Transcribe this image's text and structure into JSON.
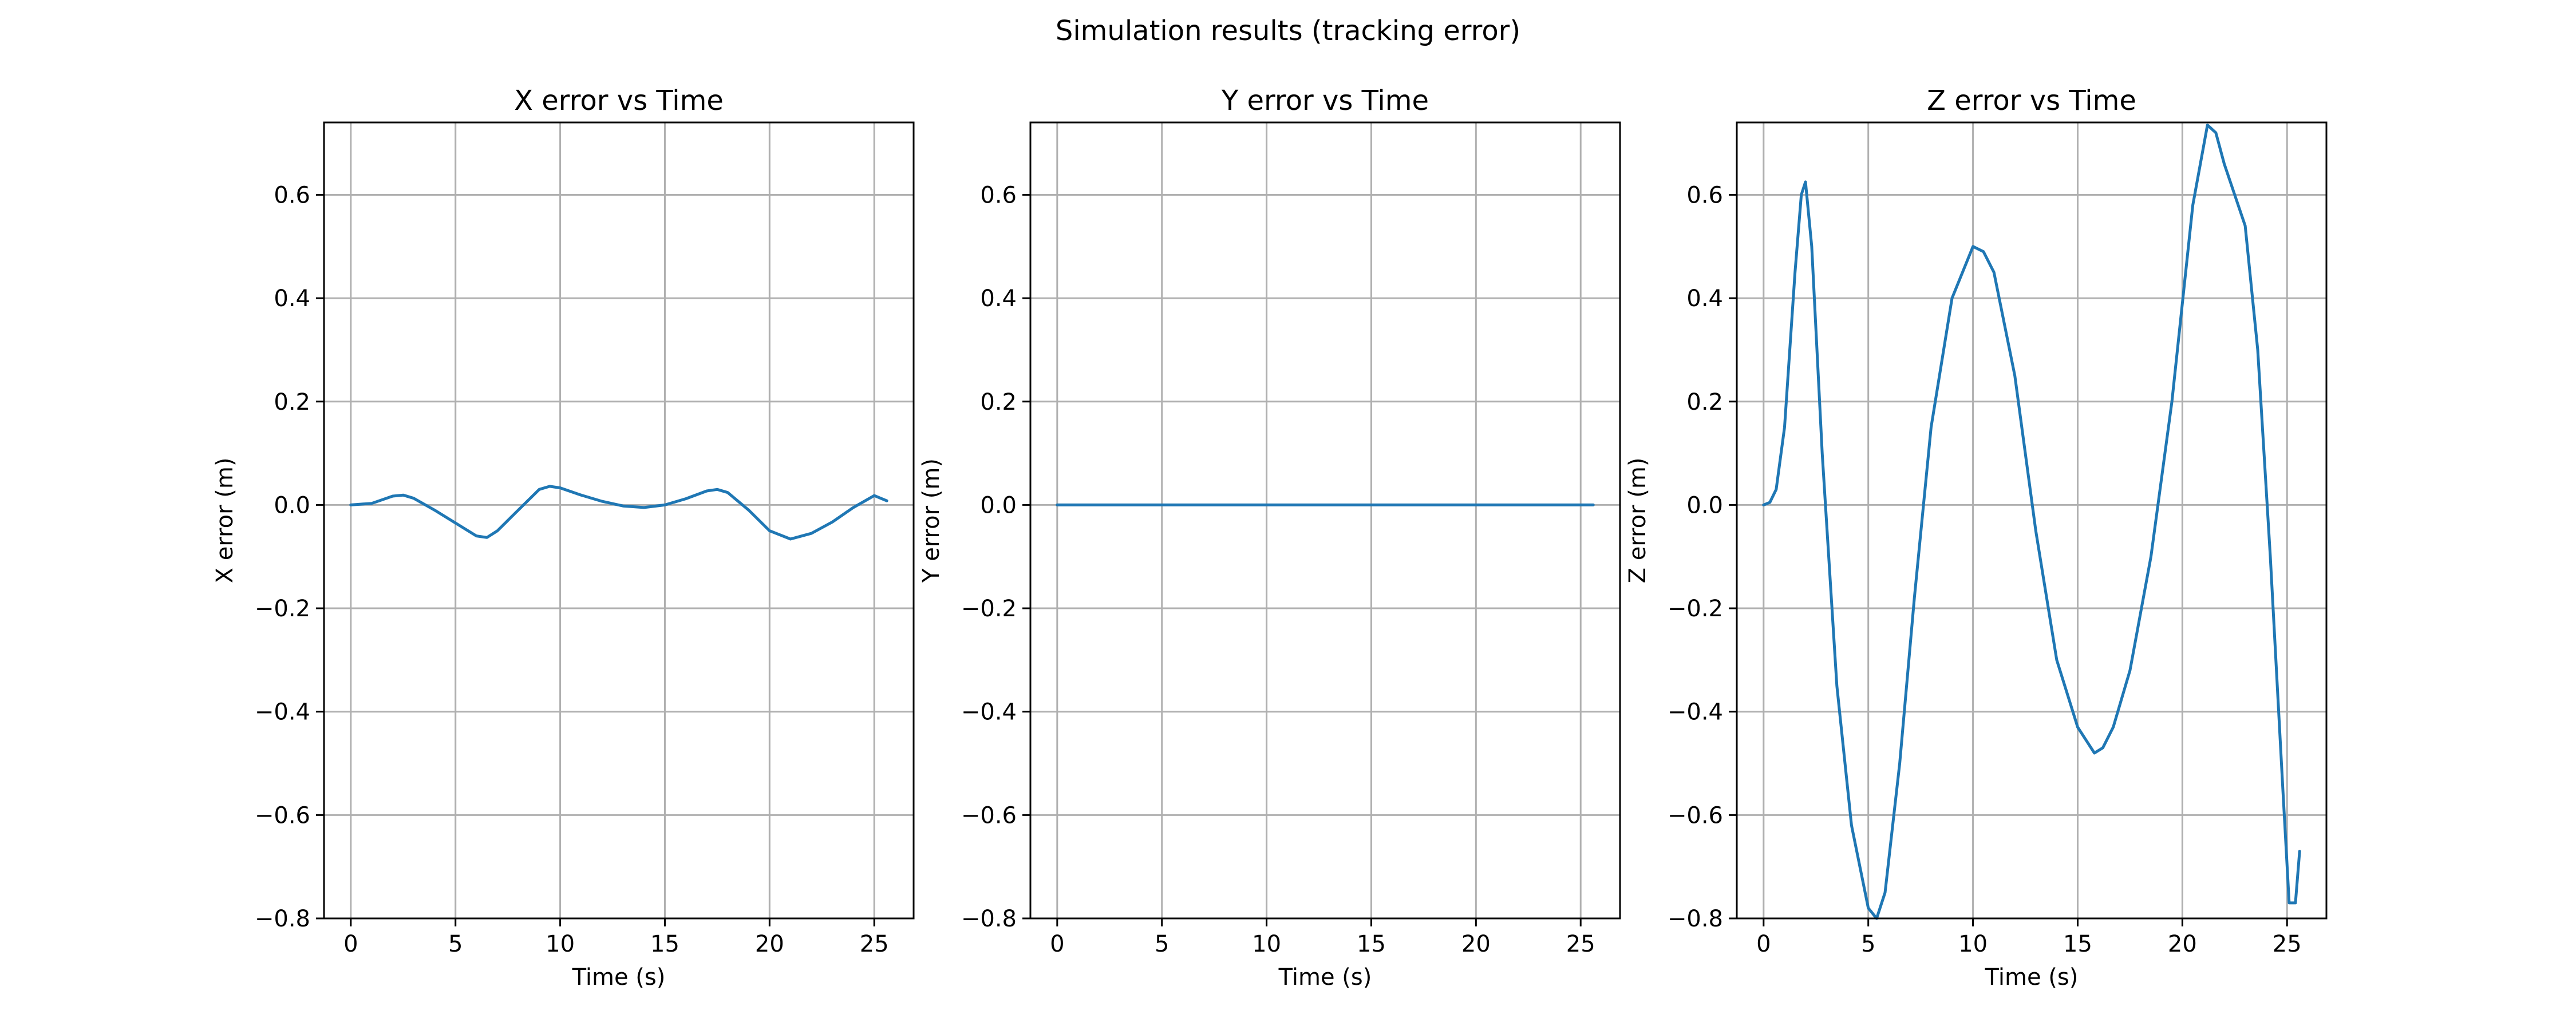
{
  "figure": {
    "suptitle": "Simulation results (tracking error)",
    "line_color": "#1f77b4"
  },
  "chart_data": [
    {
      "type": "line",
      "title": "X error vs Time",
      "xlabel": "Time (s)",
      "ylabel": "X error (m)",
      "xlim": [
        -1.28,
        26.88
      ],
      "ylim": [
        -0.8,
        0.74
      ],
      "xticks": [
        0,
        5,
        10,
        15,
        20,
        25
      ],
      "yticks": [
        -0.8,
        -0.6,
        -0.4,
        -0.2,
        0.0,
        0.2,
        0.4,
        0.6
      ],
      "ytick_labels": [
        "−0.8",
        "−0.6",
        "−0.4",
        "−0.2",
        "0.0",
        "0.2",
        "0.4",
        "0.6"
      ],
      "grid": true,
      "series": [
        {
          "x": [
            0,
            1,
            2,
            2.5,
            3,
            4,
            5,
            6,
            6.5,
            7,
            8,
            9,
            9.5,
            10,
            11,
            12,
            13,
            14,
            15,
            16,
            17,
            17.5,
            18,
            19,
            20,
            21,
            22,
            23,
            24,
            25,
            25.6
          ],
          "y": [
            0.0,
            0.003,
            0.017,
            0.019,
            0.013,
            -0.01,
            -0.035,
            -0.06,
            -0.063,
            -0.05,
            -0.01,
            0.03,
            0.036,
            0.033,
            0.019,
            0.007,
            -0.002,
            -0.005,
            0.0,
            0.012,
            0.027,
            0.03,
            0.024,
            -0.01,
            -0.05,
            -0.066,
            -0.055,
            -0.033,
            -0.005,
            0.018,
            0.008
          ]
        }
      ]
    },
    {
      "type": "line",
      "title": "Y error vs Time",
      "xlabel": "Time (s)",
      "ylabel": "Y error (m)",
      "xlim": [
        -1.28,
        26.88
      ],
      "ylim": [
        -0.8,
        0.74
      ],
      "xticks": [
        0,
        5,
        10,
        15,
        20,
        25
      ],
      "yticks": [
        -0.8,
        -0.6,
        -0.4,
        -0.2,
        0.0,
        0.2,
        0.4,
        0.6
      ],
      "ytick_labels": [
        "−0.8",
        "−0.6",
        "−0.4",
        "−0.2",
        "0.0",
        "0.2",
        "0.4",
        "0.6"
      ],
      "grid": true,
      "series": [
        {
          "x": [
            0,
            25.6
          ],
          "y": [
            0.0,
            0.0
          ]
        }
      ]
    },
    {
      "type": "line",
      "title": "Z error vs Time",
      "xlabel": "Time (s)",
      "ylabel": "Z error (m)",
      "xlim": [
        -1.28,
        26.88
      ],
      "ylim": [
        -0.8,
        0.74
      ],
      "xticks": [
        0,
        5,
        10,
        15,
        20,
        25
      ],
      "yticks": [
        -0.8,
        -0.6,
        -0.4,
        -0.2,
        0.0,
        0.2,
        0.4,
        0.6
      ],
      "ytick_labels": [
        "−0.8",
        "−0.6",
        "−0.4",
        "−0.2",
        "0.0",
        "0.2",
        "0.4",
        "0.6"
      ],
      "grid": true,
      "series": [
        {
          "x": [
            0,
            0.3,
            0.6,
            1.0,
            1.5,
            1.8,
            2.0,
            2.3,
            2.8,
            3.5,
            4.2,
            5.0,
            5.4,
            5.8,
            6.5,
            7.2,
            8.0,
            9.0,
            10.0,
            10.5,
            11.0,
            12.0,
            13.0,
            14.0,
            15.0,
            15.8,
            16.2,
            16.7,
            17.5,
            18.5,
            19.5,
            20.5,
            21.2,
            21.6,
            22.0,
            22.5,
            23.0,
            23.6,
            24.2,
            24.8,
            25.1,
            25.4,
            25.6
          ],
          "y": [
            0.0,
            0.005,
            0.03,
            0.15,
            0.45,
            0.6,
            0.625,
            0.5,
            0.1,
            -0.35,
            -0.62,
            -0.78,
            -0.8,
            -0.75,
            -0.5,
            -0.18,
            0.15,
            0.4,
            0.5,
            0.49,
            0.45,
            0.25,
            -0.05,
            -0.3,
            -0.43,
            -0.48,
            -0.47,
            -0.43,
            -0.32,
            -0.1,
            0.2,
            0.58,
            0.735,
            0.72,
            0.66,
            0.6,
            0.54,
            0.3,
            -0.1,
            -0.55,
            -0.77,
            -0.77,
            -0.67
          ]
        }
      ]
    }
  ]
}
